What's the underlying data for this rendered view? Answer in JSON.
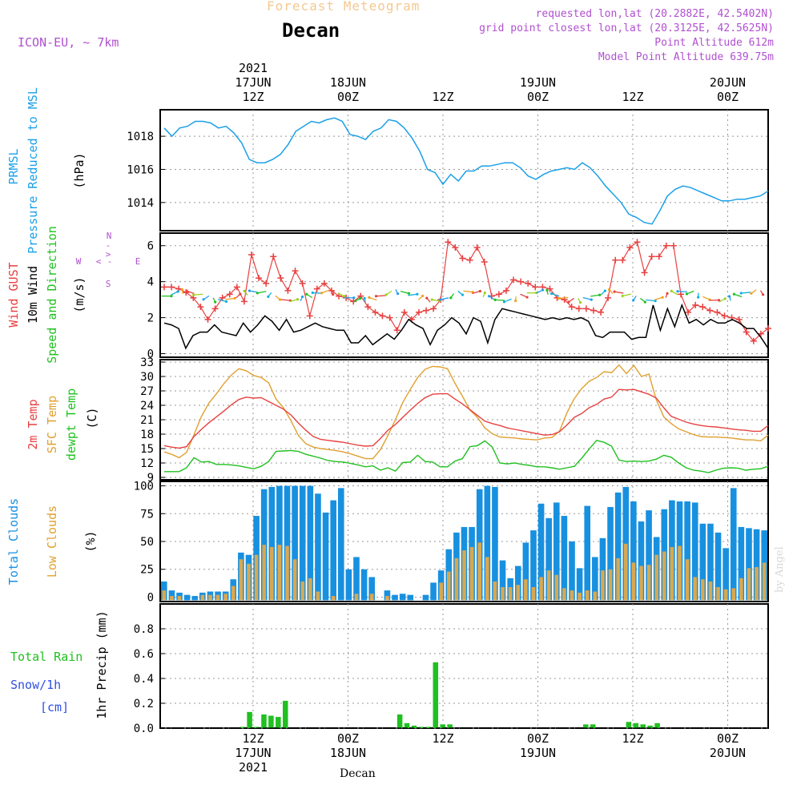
{
  "header": {
    "subtitle": "Forecast Meteogram",
    "location": "Decan",
    "model": "ICON-EU, ~ 7km",
    "requested": "requested lon,lat (20.2882E, 42.5402N)",
    "gridpoint": "grid point closest lon,lat (20.3125E, 42.5625N)",
    "point_alt": "Point Altitude 612m",
    "model_alt": "Model Point Altitude 639.75m",
    "footer_location": "Decan",
    "watermark": "by Angel"
  },
  "colors": {
    "pressure": "#1aa0e8",
    "gust": "#e84040",
    "wind": "#000000",
    "arrowlabel": "#30c030",
    "temp": "#e84040",
    "sfc": "#e0a030",
    "dewpt": "#20c020",
    "total_clouds": "#1890e0",
    "low_clouds": "#d8a850",
    "rain": "#20c020",
    "snow": "#3050e0",
    "purple": "#b050d0",
    "orange": "#f0c080"
  },
  "time_axis": {
    "top_labels": [
      {
        "h": 12,
        "lines": [
          "2021",
          "17JUN",
          "12Z"
        ]
      },
      {
        "h": 24,
        "lines": [
          "18JUN",
          "00Z"
        ]
      },
      {
        "h": 36,
        "lines": [
          "12Z"
        ]
      },
      {
        "h": 48,
        "lines": [
          "19JUN",
          "00Z"
        ]
      },
      {
        "h": 60,
        "lines": [
          "12Z"
        ]
      },
      {
        "h": 72,
        "lines": [
          "20JUN",
          "00Z"
        ]
      }
    ],
    "bottom_labels": [
      {
        "h": 12,
        "lines": [
          "12Z",
          "17JUN",
          "2021"
        ]
      },
      {
        "h": 24,
        "lines": [
          "00Z",
          "18JUN"
        ]
      },
      {
        "h": 36,
        "lines": [
          "12Z"
        ]
      },
      {
        "h": 48,
        "lines": [
          "00Z",
          "19JUN"
        ]
      },
      {
        "h": 60,
        "lines": [
          "12Z"
        ]
      },
      {
        "h": 72,
        "lines": [
          "00Z",
          "20JUN"
        ]
      }
    ]
  },
  "chart_data": [
    {
      "type": "line",
      "panel": "pressure",
      "ylabels": [
        "PRMSL",
        "Pressure Reduced to MSL",
        "(hPa)"
      ],
      "ylim": [
        1012.3,
        1019.6
      ],
      "yticks": [
        1014,
        1016,
        1018
      ],
      "x_start_hour": 0,
      "series": [
        {
          "name": "PRMSL",
          "values": [
            1018.5,
            1018.0,
            1018.5,
            1018.6,
            1018.9,
            1018.9,
            1018.8,
            1018.5,
            1018.6,
            1018.2,
            1017.6,
            1016.6,
            1016.4,
            1016.4,
            1016.6,
            1016.9,
            1017.5,
            1018.3,
            1018.6,
            1018.9,
            1018.8,
            1019.0,
            1019.1,
            1018.9,
            1018.1,
            1018.0,
            1017.8,
            1018.3,
            1018.5,
            1019.0,
            1018.9,
            1018.5,
            1017.9,
            1017.1,
            1016.0,
            1015.8,
            1015.1,
            1015.7,
            1015.3,
            1015.9,
            1015.9,
            1016.2,
            1016.2,
            1016.3,
            1016.4,
            1016.4,
            1016.1,
            1015.6,
            1015.4,
            1015.7,
            1015.9,
            1016.0,
            1016.1,
            1016.0,
            1016.4,
            1016.1,
            1015.6,
            1015.0,
            1014.5,
            1014.0,
            1013.3,
            1013.1,
            1012.8,
            1012.7,
            1013.5,
            1014.4,
            1014.8,
            1015.0,
            1014.9,
            1014.7,
            1014.5,
            1014.3,
            1014.1,
            1014.1,
            1014.2,
            1014.2,
            1014.3,
            1014.4,
            1014.7
          ]
        }
      ]
    },
    {
      "type": "line",
      "panel": "wind",
      "ylabels": [
        "Wind GUST",
        "10m Wind",
        "Speed and Direction",
        "(m/s)"
      ],
      "compass_labels": [
        "N",
        "-",
        ">",
        "<",
        "W",
        "-",
        "E",
        "S"
      ],
      "ylim": [
        -0.2,
        6.7
      ],
      "yticks": [
        0,
        2,
        4,
        6
      ],
      "x_start_hour": 0,
      "series": [
        {
          "name": "Wind GUST",
          "values": [
            3.7,
            3.7,
            3.6,
            3.4,
            3.1,
            2.6,
            1.9,
            2.5,
            3.1,
            3.3,
            3.7,
            2.9,
            5.5,
            4.2,
            3.9,
            5.4,
            4.2,
            3.5,
            4.6,
            3.9,
            2.1,
            3.6,
            3.9,
            3.5,
            3.2,
            3.1,
            2.9,
            3.2,
            2.6,
            2.3,
            2.1,
            2.0,
            1.3,
            2.3,
            1.9,
            2.3,
            2.4,
            2.5,
            3.0,
            6.2,
            5.9,
            5.3,
            5.2,
            5.9,
            5.1,
            3.2,
            3.3,
            3.5,
            4.1,
            4.0,
            3.9,
            3.7,
            3.7,
            3.6,
            3.1,
            3.0,
            2.6,
            2.5,
            2.5,
            2.4,
            2.3,
            3.1,
            5.2,
            5.2,
            5.9,
            6.2,
            4.5,
            5.4,
            5.4,
            6.0,
            6.0,
            3.3,
            2.3,
            2.7,
            2.6,
            2.4,
            2.3,
            2.1,
            2.0,
            1.9,
            1.2,
            0.7,
            1.1,
            1.4
          ]
        },
        {
          "name": "10m Wind",
          "values": [
            1.7,
            1.6,
            1.4,
            0.3,
            1.0,
            1.2,
            1.2,
            1.6,
            1.2,
            1.1,
            1.0,
            1.7,
            1.2,
            1.6,
            2.1,
            1.8,
            1.3,
            1.9,
            1.2,
            1.3,
            1.5,
            1.7,
            1.5,
            1.4,
            1.3,
            1.3,
            0.6,
            0.6,
            1.0,
            0.5,
            0.8,
            1.1,
            0.8,
            1.3,
            1.9,
            1.6,
            1.4,
            0.5,
            1.3,
            1.6,
            2.0,
            1.7,
            1.1,
            2.0,
            1.8,
            0.6,
            1.9,
            2.5,
            2.4,
            2.3,
            2.2,
            2.1,
            2.0,
            1.9,
            2.0,
            1.9,
            2.0,
            1.9,
            2.0,
            1.8,
            1.0,
            0.9,
            1.2,
            1.2,
            1.2,
            0.8,
            0.9,
            0.9,
            2.7,
            1.3,
            2.5,
            1.5,
            2.7,
            1.7,
            1.9,
            1.6,
            1.9,
            1.7,
            1.7,
            1.9,
            1.7,
            1.4,
            1.4,
            0.9,
            0.3
          ]
        }
      ]
    },
    {
      "type": "line",
      "panel": "temperature",
      "ylabels": [
        "2m Temp",
        "SFC Temp",
        "dewpt Temp",
        "(C)"
      ],
      "ylim": [
        8.5,
        33.5
      ],
      "yticks": [
        9,
        12,
        15,
        18,
        21,
        24,
        27,
        30,
        33
      ],
      "x_start_hour": 0,
      "series": [
        {
          "name": "2m Temp",
          "values": [
            15.6,
            15.3,
            15.1,
            15.4,
            17.5,
            19.0,
            20.4,
            21.6,
            22.8,
            24.1,
            25.2,
            25.7,
            25.5,
            25.6,
            24.8,
            24.0,
            23.2,
            22.0,
            20.3,
            18.8,
            17.5,
            16.9,
            16.7,
            16.5,
            16.3,
            16.0,
            15.7,
            15.5,
            15.6,
            17.1,
            18.8,
            20.0,
            21.5,
            23.0,
            24.4,
            25.6,
            26.3,
            26.4,
            26.4,
            25.3,
            24.3,
            23.1,
            21.9,
            20.7,
            20.2,
            19.8,
            19.3,
            19.0,
            18.7,
            18.4,
            18.1,
            17.8,
            17.9,
            18.5,
            19.9,
            21.5,
            22.3,
            23.5,
            24.2,
            25.3,
            25.7,
            27.3,
            27.2,
            27.3,
            26.8,
            26.3,
            25.5,
            23.5,
            21.7,
            21.1,
            20.5,
            20.1,
            19.8,
            19.6,
            19.5,
            19.3,
            19.1,
            18.9,
            18.8,
            18.6,
            18.6,
            19.8
          ]
        },
        {
          "name": "SFC Temp",
          "values": [
            14.3,
            13.8,
            13.1,
            14.2,
            17.9,
            21.7,
            24.5,
            26.4,
            28.5,
            30.3,
            31.6,
            31.2,
            30.2,
            29.8,
            28.7,
            25.3,
            23.5,
            20.8,
            17.7,
            16.0,
            15.3,
            15.0,
            14.8,
            14.6,
            14.3,
            13.9,
            13.4,
            12.9,
            12.9,
            14.8,
            17.7,
            21.0,
            24.6,
            27.3,
            29.8,
            31.5,
            32.1,
            32.0,
            31.6,
            28.6,
            25.9,
            23.0,
            21.5,
            19.3,
            18.1,
            17.4,
            17.3,
            17.2,
            17.0,
            16.9,
            16.8,
            17.2,
            17.3,
            18.6,
            22.4,
            25.4,
            27.5,
            29.0,
            29.8,
            31.0,
            30.8,
            32.4,
            30.6,
            32.3,
            30.0,
            30.5,
            25.1,
            21.6,
            20.2,
            19.1,
            18.5,
            17.9,
            17.5,
            17.4,
            17.4,
            17.3,
            17.2,
            17.0,
            16.8,
            16.8,
            16.6,
            17.8
          ]
        },
        {
          "name": "dewpt Temp",
          "values": [
            10.2,
            10.2,
            10.2,
            11.0,
            13.1,
            12.2,
            12.3,
            11.7,
            11.7,
            11.6,
            11.4,
            11.1,
            10.8,
            11.3,
            12.3,
            14.4,
            14.5,
            14.6,
            14.4,
            13.8,
            13.4,
            13.0,
            12.5,
            12.3,
            12.2,
            11.9,
            11.6,
            11.2,
            11.4,
            10.5,
            11.0,
            10.3,
            12.1,
            12.2,
            13.6,
            12.3,
            12.2,
            11.2,
            11.2,
            12.4,
            12.9,
            15.4,
            15.6,
            16.6,
            15.3,
            12.0,
            11.8,
            12.0,
            11.7,
            11.5,
            11.2,
            11.2,
            11.0,
            10.7,
            11.0,
            11.3,
            13.0,
            14.9,
            16.7,
            16.3,
            15.5,
            12.6,
            12.3,
            12.4,
            12.3,
            12.4,
            12.8,
            13.6,
            13.2,
            12.0,
            11.0,
            10.5,
            10.3,
            10.0,
            10.5,
            10.9,
            11.0,
            10.9,
            10.5,
            10.7,
            10.8,
            11.3
          ]
        }
      ]
    },
    {
      "type": "bar",
      "panel": "clouds",
      "ylabels": [
        "Total Clouds",
        "Low Clouds",
        "(%)"
      ],
      "ylim": [
        -4,
        104
      ],
      "yticks": [
        0,
        25,
        50,
        75,
        100
      ],
      "x_start_hour": 0,
      "series": [
        {
          "name": "Total Clouds",
          "values": [
            14,
            6,
            4,
            2,
            1,
            4,
            5,
            5,
            5,
            16,
            40,
            38,
            73,
            97,
            99,
            100,
            100,
            100,
            100,
            100,
            93,
            76,
            87,
            98,
            25,
            36,
            25,
            18,
            0,
            6,
            2,
            3,
            2,
            0,
            2,
            13,
            24,
            43,
            58,
            63,
            63,
            97,
            100,
            99,
            33,
            17,
            28,
            49,
            60,
            84,
            71,
            85,
            73,
            50,
            26,
            82,
            36,
            53,
            81,
            94,
            99,
            86,
            68,
            78,
            54,
            79,
            87,
            86,
            86,
            85,
            66,
            66,
            58,
            44,
            98,
            63,
            62,
            61,
            60
          ]
        },
        {
          "name": "Low Clouds",
          "values": [
            6,
            1,
            1,
            0,
            0,
            2,
            2,
            2,
            3,
            10,
            34,
            30,
            38,
            47,
            45,
            47,
            46,
            34,
            14,
            17,
            5,
            0,
            1,
            0,
            0,
            3,
            0,
            3,
            0,
            1,
            0,
            0,
            0,
            0,
            0,
            0,
            13,
            23,
            35,
            42,
            45,
            49,
            36,
            14,
            9,
            9,
            11,
            16,
            9,
            18,
            24,
            20,
            8,
            6,
            4,
            6,
            5,
            24,
            25,
            35,
            48,
            31,
            28,
            29,
            38,
            41,
            45,
            46,
            34,
            18,
            16,
            14,
            9,
            7,
            8,
            17,
            26,
            27,
            31
          ]
        }
      ]
    },
    {
      "type": "bar",
      "panel": "precip",
      "ylabels": [
        "1hr Precip (mm)"
      ],
      "left_labels": [
        "Total  Rain",
        "Snow/1h",
        "[cm]"
      ],
      "ylim": [
        0,
        1.0
      ],
      "yticks": [
        0,
        0.2,
        0.4,
        0.6,
        0.8
      ],
      "x_start_hour": 0,
      "series": [
        {
          "name": "Total Rain",
          "values": [
            0,
            0,
            0,
            0,
            0,
            0,
            0,
            0,
            0,
            0,
            0,
            0.01,
            0.13,
            0.01,
            0.11,
            0.1,
            0.09,
            0.22,
            0,
            0,
            0,
            0,
            0,
            0,
            0,
            0,
            0,
            0,
            0,
            0,
            0,
            0,
            0,
            0.11,
            0.04,
            0.02,
            0.01,
            0.01,
            0.53,
            0.03,
            0.03,
            0,
            0,
            0,
            0,
            0,
            0,
            0,
            0,
            0,
            0,
            0,
            0,
            0,
            0,
            0,
            0,
            0,
            0,
            0.03,
            0.03,
            0,
            0,
            0,
            0,
            0.05,
            0.04,
            0.03,
            0.02,
            0.04,
            0,
            0,
            0,
            0,
            0,
            0,
            0,
            0,
            0,
            0,
            0,
            0,
            0,
            0,
            0
          ]
        }
      ]
    }
  ]
}
